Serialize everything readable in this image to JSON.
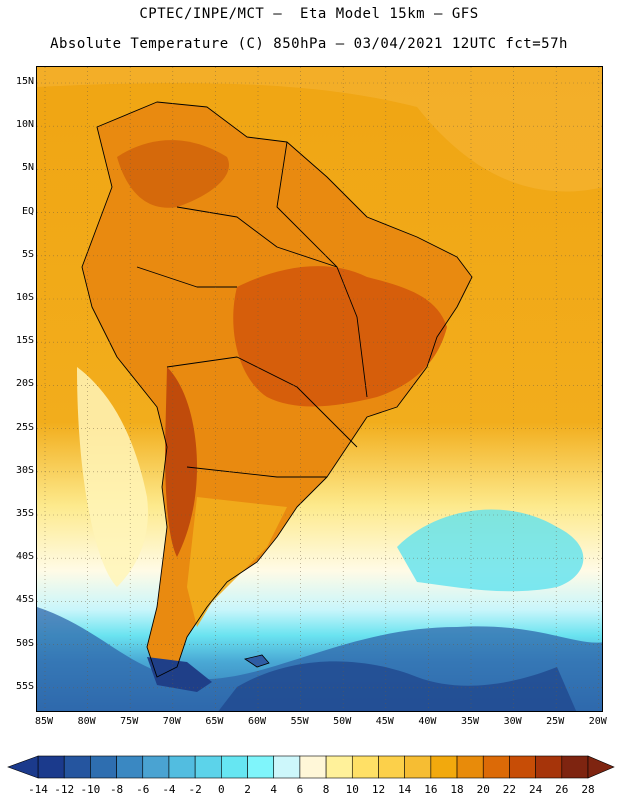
{
  "header": {
    "title_line1": "CPTEC/INPE/MCT –  Eta Model 15km – GFS",
    "title_line2": "Absolute Temperature (C) 850hPa – 03/04/2021 12UTC fct=57h"
  },
  "map": {
    "lat_labels": [
      "15N",
      "10N",
      "5N",
      "EQ",
      "5S",
      "10S",
      "15S",
      "20S",
      "25S",
      "30S",
      "35S",
      "40S",
      "45S",
      "50S",
      "55S"
    ],
    "lon_labels": [
      "85W",
      "80W",
      "75W",
      "70W",
      "65W",
      "60W",
      "55W",
      "50W",
      "45W",
      "40W",
      "35W",
      "30W",
      "25W",
      "20W"
    ]
  },
  "colorbar": {
    "labels": [
      "-14",
      "-12",
      "-10",
      "-8",
      "-6",
      "-4",
      "-2",
      "0",
      "2",
      "4",
      "6",
      "8",
      "10",
      "12",
      "14",
      "16",
      "18",
      "20",
      "22",
      "24",
      "26",
      "28"
    ],
    "colors": [
      "#1b3a8c",
      "#25559f",
      "#2e6eb0",
      "#3a88c2",
      "#4aa3d2",
      "#52bde0",
      "#5cd3ea",
      "#66e6f2",
      "#7ff5fb",
      "#cdf7fb",
      "#fff7d8",
      "#fff19a",
      "#ffe066",
      "#fcd04a",
      "#f6bd33",
      "#f2a90d",
      "#e88b0a",
      "#dc6a07",
      "#c74d06",
      "#a6340a",
      "#7e2410"
    ]
  }
}
